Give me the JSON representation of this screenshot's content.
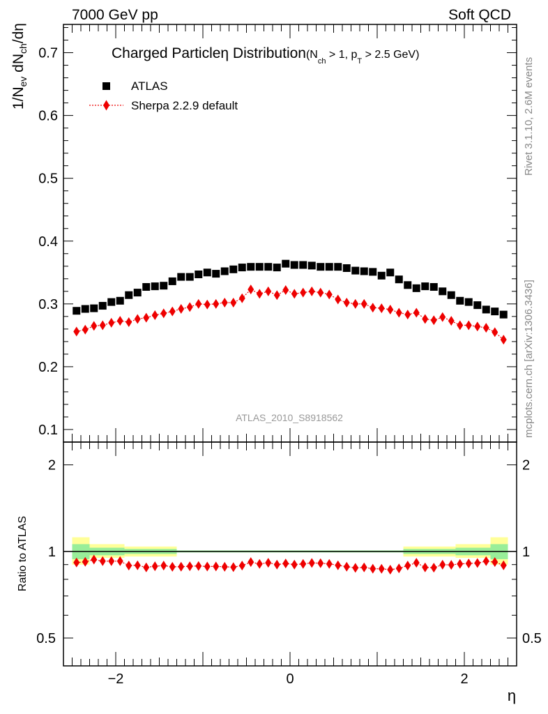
{
  "header": {
    "left": "7000 GeV pp",
    "right": "Soft QCD"
  },
  "side_labels": {
    "rivet": "Rivet 3.1.10,  2.6M events",
    "mcplots": "mcplots.cern.ch [arXiv:1306.3436]"
  },
  "chart_data": [
    {
      "type": "scatter",
      "panel": "main",
      "title": {
        "main": "Charged Particleη Distribution",
        "cut_open": "(N",
        "cut_sub": "ch",
        "cut_mid": " > 1, p",
        "cut_sub2": "T",
        "cut_close": " > 2.5 GeV)"
      },
      "ylabel": "1/N_ev dN_ch/dη",
      "watermark": "ATLAS_2010_S8918562",
      "xlim": [
        -2.6,
        2.6
      ],
      "ylim": [
        0.08,
        0.745
      ],
      "yticks": [
        0.1,
        0.2,
        0.3,
        0.4,
        0.5,
        0.6,
        0.7
      ],
      "ytick_labels": [
        "0.1",
        "0.2",
        "0.3",
        "0.4",
        "0.5",
        "0.6",
        "0.7"
      ],
      "legend": {
        "placement": "top-left",
        "entries": [
          "ATLAS",
          "Sherpa 2.2.9 default"
        ]
      },
      "x": [
        -2.45,
        -2.35,
        -2.25,
        -2.15,
        -2.05,
        -1.95,
        -1.85,
        -1.75,
        -1.65,
        -1.55,
        -1.45,
        -1.35,
        -1.25,
        -1.15,
        -1.05,
        -0.95,
        -0.85,
        -0.75,
        -0.65,
        -0.55,
        -0.45,
        -0.35,
        -0.25,
        -0.15,
        -0.05,
        0.05,
        0.15,
        0.25,
        0.35,
        0.45,
        0.55,
        0.65,
        0.75,
        0.85,
        0.95,
        1.05,
        1.15,
        1.25,
        1.35,
        1.45,
        1.55,
        1.65,
        1.75,
        1.85,
        1.95,
        2.05,
        2.15,
        2.25,
        2.35,
        2.45
      ],
      "series": [
        {
          "name": "ATLAS",
          "color": "#000000",
          "marker": "square",
          "values": [
            0.289,
            0.292,
            0.293,
            0.297,
            0.303,
            0.305,
            0.314,
            0.318,
            0.327,
            0.328,
            0.329,
            0.336,
            0.343,
            0.343,
            0.347,
            0.35,
            0.348,
            0.352,
            0.355,
            0.358,
            0.359,
            0.359,
            0.359,
            0.358,
            0.364,
            0.362,
            0.362,
            0.361,
            0.359,
            0.359,
            0.359,
            0.357,
            0.353,
            0.352,
            0.351,
            0.345,
            0.35,
            0.339,
            0.33,
            0.325,
            0.328,
            0.327,
            0.32,
            0.314,
            0.305,
            0.303,
            0.298,
            0.291,
            0.288,
            0.283
          ]
        },
        {
          "name": "Sherpa 2.2.9 default",
          "color": "#ee0000",
          "marker": "diamond",
          "values": [
            0.256,
            0.259,
            0.265,
            0.266,
            0.27,
            0.273,
            0.271,
            0.276,
            0.278,
            0.282,
            0.285,
            0.288,
            0.292,
            0.295,
            0.3,
            0.299,
            0.3,
            0.302,
            0.302,
            0.309,
            0.323,
            0.316,
            0.32,
            0.314,
            0.322,
            0.316,
            0.318,
            0.32,
            0.318,
            0.315,
            0.307,
            0.302,
            0.3,
            0.3,
            0.294,
            0.293,
            0.291,
            0.286,
            0.283,
            0.286,
            0.276,
            0.274,
            0.279,
            0.273,
            0.266,
            0.266,
            0.264,
            0.262,
            0.255,
            0.243
          ]
        }
      ]
    },
    {
      "type": "scatter",
      "panel": "ratio",
      "ylabel": "Ratio to ATLAS",
      "xlabel": "η",
      "xlim": [
        -2.6,
        2.6
      ],
      "ylim": [
        0.4,
        2.4
      ],
      "log_y": true,
      "yticks": [
        0.5,
        1,
        2
      ],
      "ytick_labels": [
        "0.5",
        "1",
        "2"
      ],
      "xticks": [
        -2,
        0,
        2
      ],
      "xtick_labels": [
        "−2",
        "0",
        "2"
      ],
      "reference_line": 1,
      "uncertainty_bands": [
        {
          "x0": -2.5,
          "x1": -2.3,
          "inner": [
            0.94,
            1.06
          ],
          "outer": [
            0.9,
            1.12
          ]
        },
        {
          "x0": -2.3,
          "x1": -1.9,
          "inner": [
            0.97,
            1.03
          ],
          "outer": [
            0.95,
            1.06
          ]
        },
        {
          "x0": -1.9,
          "x1": -1.3,
          "inner": [
            0.98,
            1.02
          ],
          "outer": [
            0.96,
            1.04
          ]
        },
        {
          "x0": 1.3,
          "x1": 1.9,
          "inner": [
            0.98,
            1.02
          ],
          "outer": [
            0.96,
            1.04
          ]
        },
        {
          "x0": 1.9,
          "x1": 2.3,
          "inner": [
            0.97,
            1.03
          ],
          "outer": [
            0.95,
            1.06
          ]
        },
        {
          "x0": 2.3,
          "x1": 2.5,
          "inner": [
            0.94,
            1.06
          ],
          "outer": [
            0.9,
            1.12
          ]
        }
      ],
      "band_colors": {
        "inner": "#99ee99",
        "outer": "#ffff99",
        "line": "#000000"
      },
      "series": [
        {
          "name": "Sherpa 2.2.9 default",
          "color": "#ee0000",
          "marker": "diamond",
          "values": [
            0.915,
            0.92,
            0.937,
            0.925,
            0.925,
            0.925,
            0.893,
            0.895,
            0.88,
            0.888,
            0.893,
            0.884,
            0.885,
            0.888,
            0.89,
            0.886,
            0.887,
            0.884,
            0.882,
            0.893,
            0.918,
            0.905,
            0.913,
            0.9,
            0.908,
            0.9,
            0.905,
            0.912,
            0.91,
            0.905,
            0.895,
            0.885,
            0.877,
            0.88,
            0.871,
            0.87,
            0.864,
            0.873,
            0.893,
            0.913,
            0.88,
            0.878,
            0.899,
            0.898,
            0.905,
            0.908,
            0.911,
            0.925,
            0.918,
            0.895
          ]
        }
      ]
    }
  ]
}
